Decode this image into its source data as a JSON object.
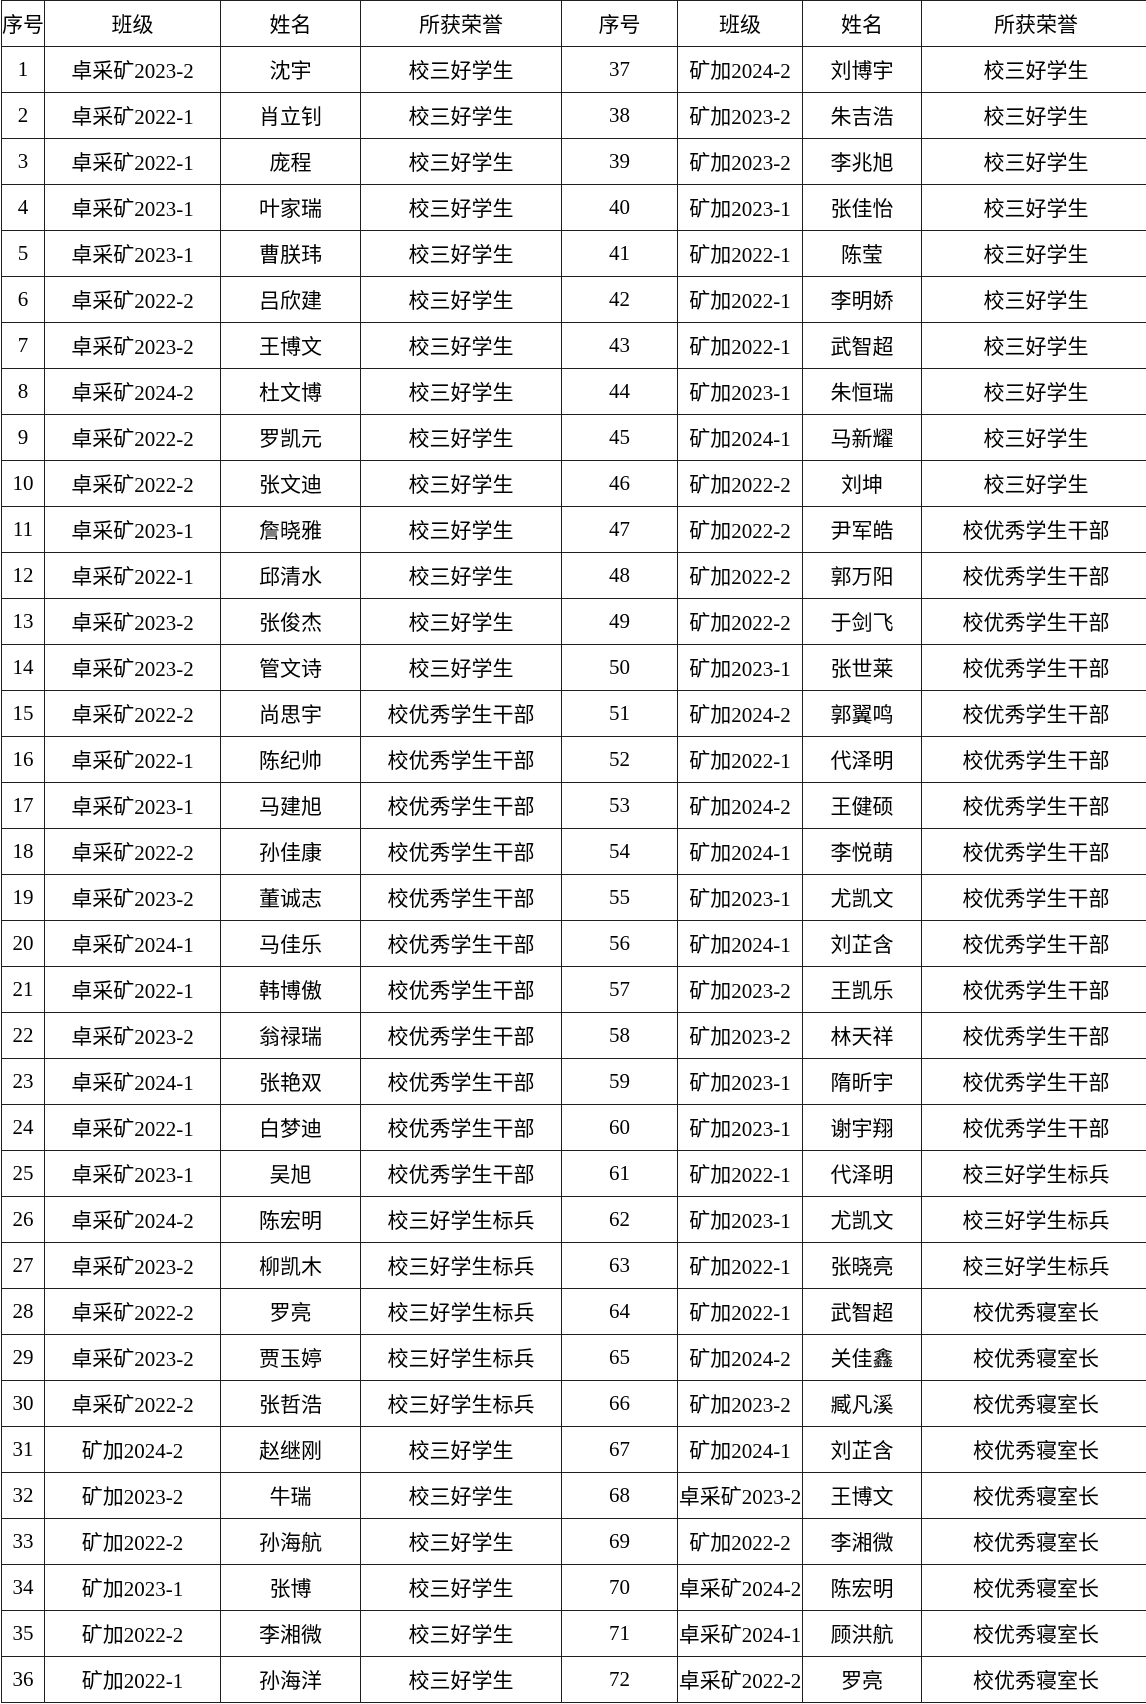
{
  "colors": {
    "background": "#ffffff",
    "border": "#1f1f1f",
    "text": "#000000"
  },
  "headers": {
    "no": "序号",
    "class": "班级",
    "name": "姓名",
    "honor": "所获荣誉"
  },
  "chart_data": {
    "type": "table",
    "columns": [
      "序号",
      "班级",
      "姓名",
      "所获荣誉",
      "序号",
      "班级",
      "姓名",
      "所获荣誉"
    ]
  },
  "rows": [
    {
      "no": "1",
      "class_name": "卓采矿2023-2",
      "name": "沈宇",
      "honor": "校三好学生",
      "no2": "37",
      "class2": "矿加2024-2",
      "name2": "刘博宇",
      "honor2": "校三好学生"
    },
    {
      "no": "2",
      "class_name": "卓采矿2022-1",
      "name": "肖立钊",
      "honor": "校三好学生",
      "no2": "38",
      "class2": "矿加2023-2",
      "name2": "朱吉浩",
      "honor2": "校三好学生"
    },
    {
      "no": "3",
      "class_name": "卓采矿2022-1",
      "name": "庞程",
      "honor": "校三好学生",
      "no2": "39",
      "class2": "矿加2023-2",
      "name2": "李兆旭",
      "honor2": "校三好学生"
    },
    {
      "no": "4",
      "class_name": "卓采矿2023-1",
      "name": "叶家瑞",
      "honor": "校三好学生",
      "no2": "40",
      "class2": "矿加2023-1",
      "name2": "张佳怡",
      "honor2": "校三好学生"
    },
    {
      "no": "5",
      "class_name": "卓采矿2023-1",
      "name": "曹朕玮",
      "honor": "校三好学生",
      "no2": "41",
      "class2": "矿加2022-1",
      "name2": "陈莹",
      "honor2": "校三好学生"
    },
    {
      "no": "6",
      "class_name": "卓采矿2022-2",
      "name": "吕欣建",
      "honor": "校三好学生",
      "no2": "42",
      "class2": "矿加2022-1",
      "name2": "李明娇",
      "honor2": "校三好学生"
    },
    {
      "no": "7",
      "class_name": "卓采矿2023-2",
      "name": "王博文",
      "honor": "校三好学生",
      "no2": "43",
      "class2": "矿加2022-1",
      "name2": "武智超",
      "honor2": "校三好学生"
    },
    {
      "no": "8",
      "class_name": "卓采矿2024-2",
      "name": "杜文博",
      "honor": "校三好学生",
      "no2": "44",
      "class2": "矿加2023-1",
      "name2": "朱恒瑞",
      "honor2": "校三好学生"
    },
    {
      "no": "9",
      "class_name": "卓采矿2022-2",
      "name": "罗凯元",
      "honor": "校三好学生",
      "no2": "45",
      "class2": "矿加2024-1",
      "name2": "马新耀",
      "honor2": "校三好学生"
    },
    {
      "no": "10",
      "class_name": "卓采矿2022-2",
      "name": "张文迪",
      "honor": "校三好学生",
      "no2": "46",
      "class2": "矿加2022-2",
      "name2": "刘坤",
      "honor2": "校三好学生"
    },
    {
      "no": "11",
      "class_name": "卓采矿2023-1",
      "name": "詹晓雅",
      "honor": "校三好学生",
      "no2": "47",
      "class2": "矿加2022-2",
      "name2": "尹军皓",
      "honor2": "校优秀学生干部"
    },
    {
      "no": "12",
      "class_name": "卓采矿2022-1",
      "name": "邱清水",
      "honor": "校三好学生",
      "no2": "48",
      "class2": "矿加2022-2",
      "name2": "郭万阳",
      "honor2": "校优秀学生干部"
    },
    {
      "no": "13",
      "class_name": "卓采矿2023-2",
      "name": "张俊杰",
      "honor": "校三好学生",
      "no2": "49",
      "class2": "矿加2022-2",
      "name2": "于剑飞",
      "honor2": "校优秀学生干部"
    },
    {
      "no": "14",
      "class_name": "卓采矿2023-2",
      "name": "管文诗",
      "honor": "校三好学生",
      "no2": "50",
      "class2": "矿加2023-1",
      "name2": "张世莱",
      "honor2": "校优秀学生干部"
    },
    {
      "no": "15",
      "class_name": "卓采矿2022-2",
      "name": "尚思宇",
      "honor": "校优秀学生干部",
      "no2": "51",
      "class2": "矿加2024-2",
      "name2": "郭翼鸣",
      "honor2": "校优秀学生干部"
    },
    {
      "no": "16",
      "class_name": "卓采矿2022-1",
      "name": "陈纪帅",
      "honor": "校优秀学生干部",
      "no2": "52",
      "class2": "矿加2022-1",
      "name2": "代泽明",
      "honor2": "校优秀学生干部"
    },
    {
      "no": "17",
      "class_name": "卓采矿2023-1",
      "name": "马建旭",
      "honor": "校优秀学生干部",
      "no2": "53",
      "class2": "矿加2024-2",
      "name2": "王健硕",
      "honor2": "校优秀学生干部"
    },
    {
      "no": "18",
      "class_name": "卓采矿2022-2",
      "name": "孙佳康",
      "honor": "校优秀学生干部",
      "no2": "54",
      "class2": "矿加2024-1",
      "name2": "李悦萌",
      "honor2": "校优秀学生干部"
    },
    {
      "no": "19",
      "class_name": "卓采矿2023-2",
      "name": "董诚志",
      "honor": "校优秀学生干部",
      "no2": "55",
      "class2": "矿加2023-1",
      "name2": "尤凯文",
      "honor2": "校优秀学生干部"
    },
    {
      "no": "20",
      "class_name": "卓采矿2024-1",
      "name": "马佳乐",
      "honor": "校优秀学生干部",
      "no2": "56",
      "class2": "矿加2024-1",
      "name2": "刘芷含",
      "honor2": "校优秀学生干部"
    },
    {
      "no": "21",
      "class_name": "卓采矿2022-1",
      "name": "韩博傲",
      "honor": "校优秀学生干部",
      "no2": "57",
      "class2": "矿加2023-2",
      "name2": "王凯乐",
      "honor2": "校优秀学生干部"
    },
    {
      "no": "22",
      "class_name": "卓采矿2023-2",
      "name": "翁禄瑞",
      "honor": "校优秀学生干部",
      "no2": "58",
      "class2": "矿加2023-2",
      "name2": "林天祥",
      "honor2": "校优秀学生干部"
    },
    {
      "no": "23",
      "class_name": "卓采矿2024-1",
      "name": "张艳双",
      "honor": "校优秀学生干部",
      "no2": "59",
      "class2": "矿加2023-1",
      "name2": "隋昕宇",
      "honor2": "校优秀学生干部"
    },
    {
      "no": "24",
      "class_name": "卓采矿2022-1",
      "name": "白梦迪",
      "honor": "校优秀学生干部",
      "no2": "60",
      "class2": "矿加2023-1",
      "name2": "谢宇翔",
      "honor2": "校优秀学生干部"
    },
    {
      "no": "25",
      "class_name": "卓采矿2023-1",
      "name": "吴旭",
      "honor": "校优秀学生干部",
      "no2": "61",
      "class2": "矿加2022-1",
      "name2": "代泽明",
      "honor2": "校三好学生标兵"
    },
    {
      "no": "26",
      "class_name": "卓采矿2024-2",
      "name": "陈宏明",
      "honor": "校三好学生标兵",
      "no2": "62",
      "class2": "矿加2023-1",
      "name2": "尤凯文",
      "honor2": "校三好学生标兵"
    },
    {
      "no": "27",
      "class_name": "卓采矿2023-2",
      "name": "柳凯木",
      "honor": "校三好学生标兵",
      "no2": "63",
      "class2": "矿加2022-1",
      "name2": "张晓亮",
      "honor2": "校三好学生标兵"
    },
    {
      "no": "28",
      "class_name": "卓采矿2022-2",
      "name": "罗亮",
      "honor": "校三好学生标兵",
      "no2": "64",
      "class2": "矿加2022-1",
      "name2": "武智超",
      "honor2": "校优秀寝室长"
    },
    {
      "no": "29",
      "class_name": "卓采矿2023-2",
      "name": "贾玉婷",
      "honor": "校三好学生标兵",
      "no2": "65",
      "class2": "矿加2024-2",
      "name2": "关佳鑫",
      "honor2": "校优秀寝室长"
    },
    {
      "no": "30",
      "class_name": "卓采矿2022-2",
      "name": "张哲浩",
      "honor": "校三好学生标兵",
      "no2": "66",
      "class2": "矿加2023-2",
      "name2": "臧凡溪",
      "honor2": "校优秀寝室长"
    },
    {
      "no": "31",
      "class_name": "矿加2024-2",
      "name": "赵继刚",
      "honor": "校三好学生",
      "no2": "67",
      "class2": "矿加2024-1",
      "name2": "刘芷含",
      "honor2": "校优秀寝室长"
    },
    {
      "no": "32",
      "class_name": "矿加2023-2",
      "name": "牛瑞",
      "honor": "校三好学生",
      "no2": "68",
      "class2": "卓采矿2023-2",
      "name2": "王博文",
      "honor2": "校优秀寝室长"
    },
    {
      "no": "33",
      "class_name": "矿加2022-2",
      "name": "孙海航",
      "honor": "校三好学生",
      "no2": "69",
      "class2": "矿加2022-2",
      "name2": "李湘微",
      "honor2": "校优秀寝室长"
    },
    {
      "no": "34",
      "class_name": "矿加2023-1",
      "name": "张博",
      "honor": "校三好学生",
      "no2": "70",
      "class2": "卓采矿2024-2",
      "name2": "陈宏明",
      "honor2": "校优秀寝室长"
    },
    {
      "no": "35",
      "class_name": "矿加2022-2",
      "name": "李湘微",
      "honor": "校三好学生",
      "no2": "71",
      "class2": "卓采矿2024-1",
      "name2": "顾洪航",
      "honor2": "校优秀寝室长"
    },
    {
      "no": "36",
      "class_name": "矿加2022-1",
      "name": "孙海洋",
      "honor": "校三好学生",
      "no2": "72",
      "class2": "卓采矿2022-2",
      "name2": "罗亮",
      "honor2": "校优秀寝室长"
    }
  ]
}
